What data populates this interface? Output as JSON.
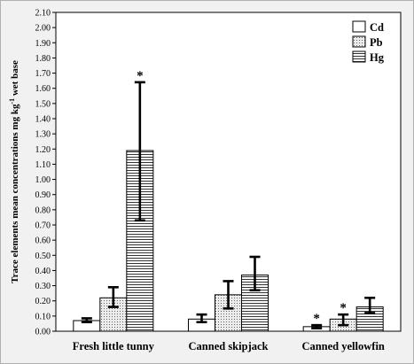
{
  "chart_data": {
    "type": "bar",
    "title": "",
    "ylabel_main": "Trace elements mean concentrations mg kg",
    "ylabel_sup": "-1",
    "ylabel_tail": " wet base",
    "xlabel": "",
    "ylim": [
      0,
      2.1
    ],
    "ytick_step": 0.1,
    "yticks": [
      "0.00",
      "0.10",
      "0.20",
      "0.30",
      "0.40",
      "0.50",
      "0.60",
      "0.70",
      "0.80",
      "0.90",
      "1.00",
      "1.10",
      "1.20",
      "1.30",
      "1.40",
      "1.50",
      "1.60",
      "1.70",
      "1.80",
      "1.90",
      "2.00",
      "2.10"
    ],
    "categories": [
      "Fresh little tunny",
      "Canned skipjack",
      "Canned yellowfin"
    ],
    "legend_position": "top-right",
    "series": [
      {
        "name": "Cd",
        "pattern": "white",
        "values": [
          0.07,
          0.08,
          0.03
        ],
        "err_low": [
          0.06,
          0.06,
          0.02
        ],
        "err_high": [
          0.085,
          0.11,
          0.04
        ],
        "significant": [
          false,
          false,
          true
        ]
      },
      {
        "name": "Pb",
        "pattern": "dots",
        "values": [
          0.22,
          0.24,
          0.08
        ],
        "err_low": [
          0.16,
          0.15,
          0.04
        ],
        "err_high": [
          0.29,
          0.33,
          0.11
        ],
        "significant": [
          false,
          false,
          true
        ]
      },
      {
        "name": "Hg",
        "pattern": "hlines",
        "values": [
          1.19,
          0.37,
          0.16
        ],
        "err_low": [
          0.73,
          0.27,
          0.12
        ],
        "err_high": [
          1.64,
          0.49,
          0.22
        ],
        "significant": [
          true,
          false,
          false
        ]
      }
    ],
    "significance_marker": "*"
  }
}
